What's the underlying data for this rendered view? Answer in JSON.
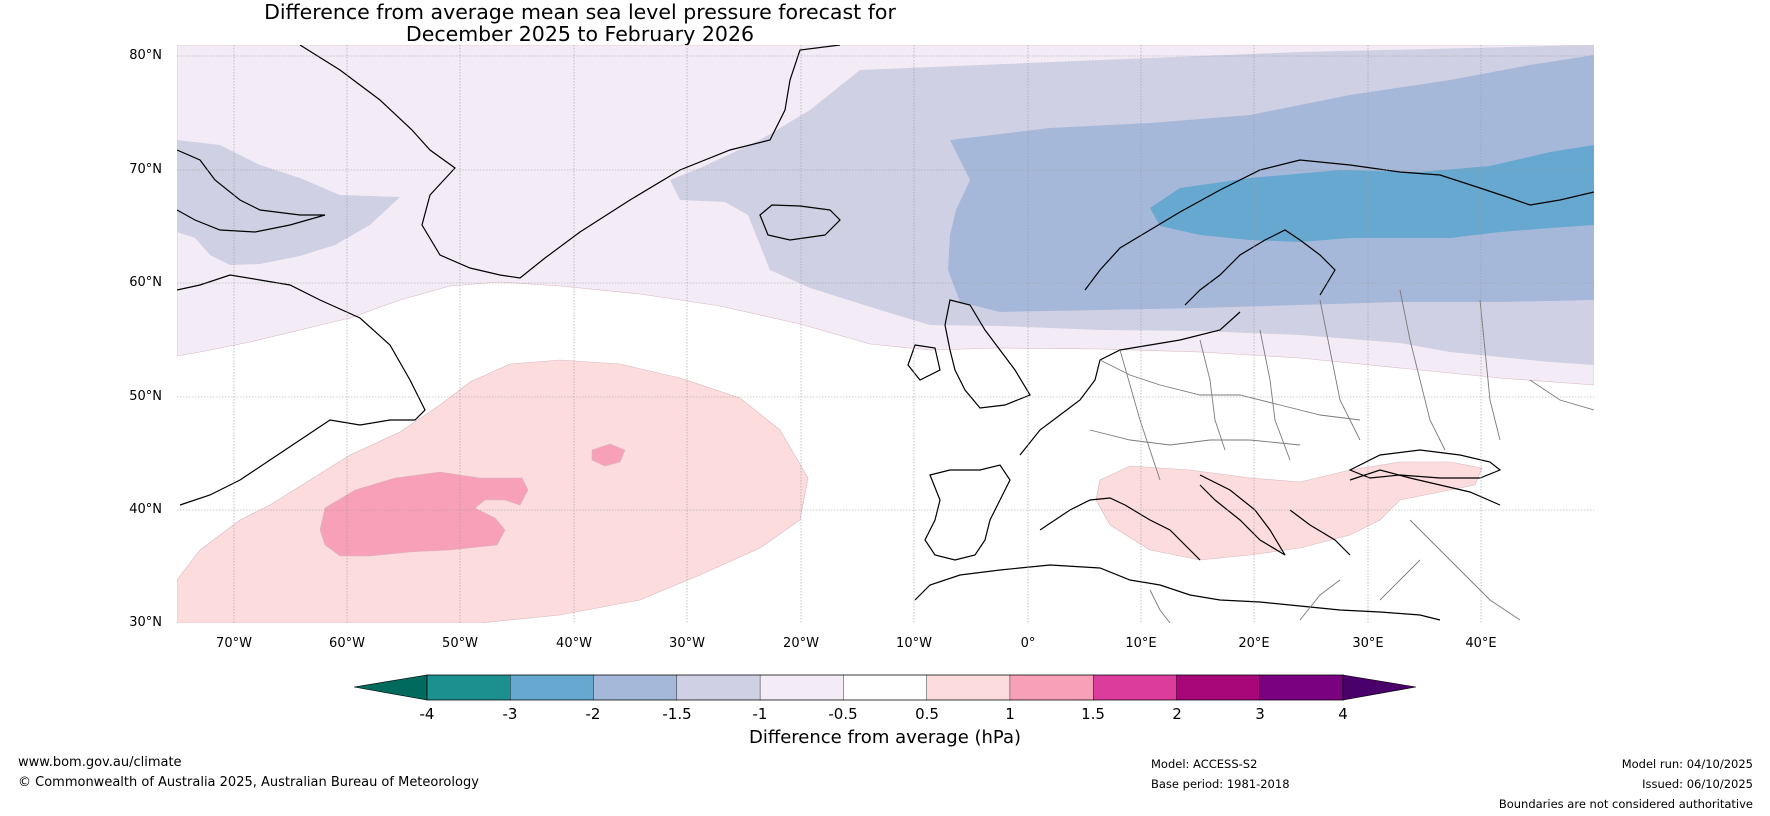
{
  "title": {
    "line1": "Difference from average mean sea level pressure forecast for",
    "line2": "December 2025 to February 2026"
  },
  "map": {
    "region": "North Atlantic and Europe",
    "lon_range_deg": [
      -75,
      50
    ],
    "lat_range_deg": [
      30,
      80
    ],
    "latitude_labels": [
      "80°N",
      "70°N",
      "60°N",
      "50°N",
      "40°N",
      "30°N"
    ],
    "longitude_labels": [
      "70°W",
      "60°W",
      "50°W",
      "40°W",
      "30°W",
      "20°W",
      "10°W",
      "0°",
      "10°E",
      "20°E",
      "30°E",
      "40°E"
    ],
    "anomaly_regions": [
      {
        "name": "weak-negative-north",
        "range": "-1 to -0.5",
        "color": "#f3ecf6"
      },
      {
        "name": "negative-north-atlantic",
        "range": "-1.5 to -1",
        "color": "#d0d0e4"
      },
      {
        "name": "negative-scandinavia",
        "range": "-2 to -1.5",
        "color": "#a6b8d9"
      },
      {
        "name": "strong-negative-scandinavia",
        "range": "-3 to -2",
        "color": "#66a8d0"
      },
      {
        "name": "positive-north-atlantic",
        "range": "0.5 to 1",
        "color": "#fcdcdc"
      },
      {
        "name": "strong-positive-north-atlantic",
        "range": "1 to 1.5",
        "color": "#f7a0b8"
      },
      {
        "name": "positive-mediterranean",
        "range": "0.5 to 1",
        "color": "#fcdcdc"
      }
    ]
  },
  "colorbar": {
    "tick_labels": [
      "-4",
      "-3",
      "-2",
      "-1.5",
      "-1",
      "-0.5",
      "0.5",
      "1",
      "1.5",
      "2",
      "3",
      "4"
    ],
    "colors": [
      "#1b908e",
      "#66a8d0",
      "#a6b8d9",
      "#d0d0e4",
      "#f3ecf6",
      "#ffffff",
      "#fcdcdc",
      "#f7a0b8",
      "#dc3c9c",
      "#a8077a",
      "#7a0180"
    ],
    "extend_min_color": "#006a5e",
    "extend_max_color": "#4a006a",
    "label": "Difference from average (hPa)"
  },
  "footer": {
    "website": "www.bom.gov.au/climate",
    "copyright": "© Commonwealth of Australia 2025, Australian Bureau of Meteorology",
    "model": "Model: ACCESS-S2",
    "base_period": "Base period: 1981-2018",
    "model_run": "Model run: 04/10/2025",
    "issued": "Issued: 06/10/2025",
    "disclaimer": "Boundaries are not considered authoritative"
  }
}
